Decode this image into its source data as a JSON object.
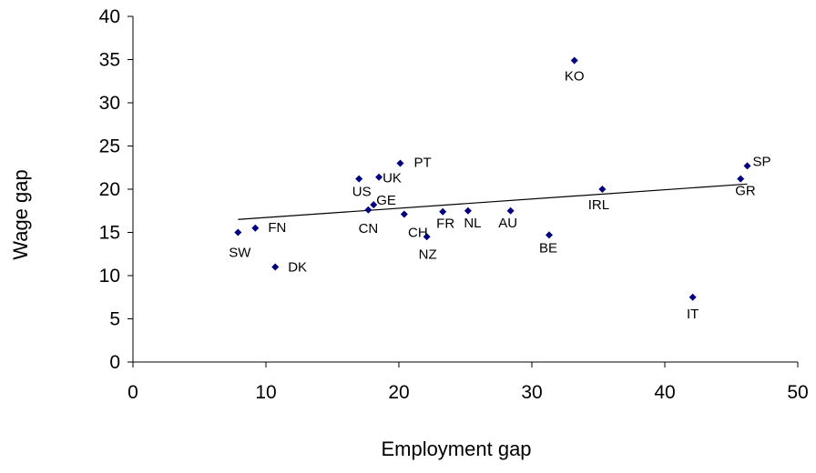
{
  "chart_data": {
    "type": "scatter",
    "title": "",
    "xlabel": "Employment gap",
    "ylabel": "Wage gap",
    "xlim": [
      0,
      50
    ],
    "ylim": [
      0,
      40
    ],
    "xticks": [
      0,
      10,
      20,
      30,
      40,
      50
    ],
    "yticks": [
      0,
      5,
      10,
      15,
      20,
      25,
      30,
      35,
      40
    ],
    "grid": false,
    "legend": "none",
    "marker_color": "#000080",
    "points": [
      {
        "label": "KO",
        "x": 33.2,
        "y": 34.9
      },
      {
        "label": "PT",
        "x": 20.1,
        "y": 23.0
      },
      {
        "label": "SP",
        "x": 46.2,
        "y": 22.7
      },
      {
        "label": "UK",
        "x": 18.5,
        "y": 21.4
      },
      {
        "label": "US",
        "x": 17.0,
        "y": 21.2
      },
      {
        "label": "GR",
        "x": 45.7,
        "y": 21.2
      },
      {
        "label": "IRL",
        "x": 35.3,
        "y": 20.0
      },
      {
        "label": "GE",
        "x": 18.1,
        "y": 18.2
      },
      {
        "label": "CN",
        "x": 17.7,
        "y": 17.6
      },
      {
        "label": "FR",
        "x": 23.3,
        "y": 17.4
      },
      {
        "label": "NL",
        "x": 25.2,
        "y": 17.5
      },
      {
        "label": "AU",
        "x": 28.4,
        "y": 17.5
      },
      {
        "label": "CH",
        "x": 20.4,
        "y": 17.1
      },
      {
        "label": "FN",
        "x": 9.2,
        "y": 15.5
      },
      {
        "label": "SW",
        "x": 7.9,
        "y": 15.0
      },
      {
        "label": "BE",
        "x": 31.3,
        "y": 14.7
      },
      {
        "label": "NZ",
        "x": 22.1,
        "y": 14.5
      },
      {
        "label": "DK",
        "x": 10.7,
        "y": 11.0
      },
      {
        "label": "IT",
        "x": 42.1,
        "y": 7.5
      }
    ],
    "trendline": {
      "x": [
        7.9,
        46.2
      ],
      "y": [
        16.5,
        20.6
      ],
      "color": "#000000"
    }
  }
}
